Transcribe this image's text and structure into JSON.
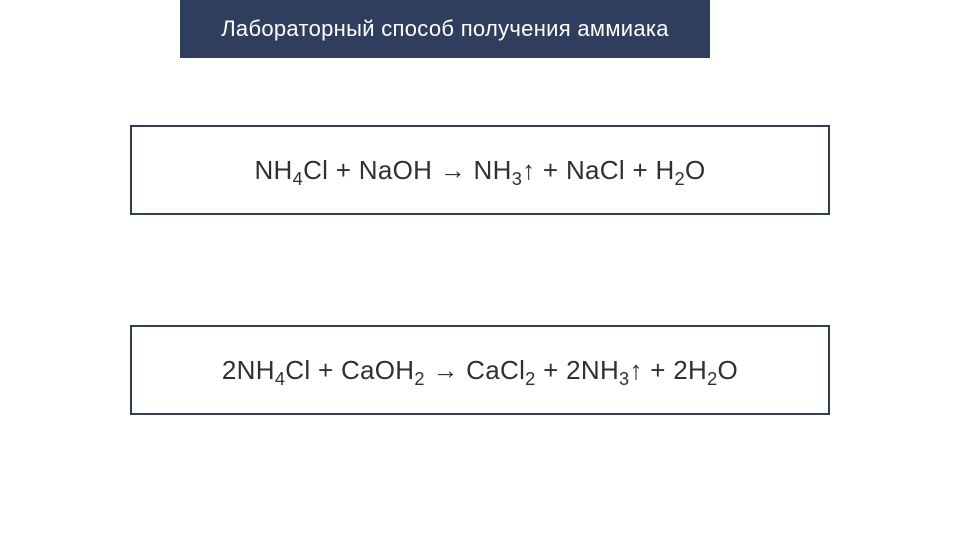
{
  "slide": {
    "title": "Лабораторный способ получения аммиака",
    "title_bg_color": "#2f3e5e",
    "title_text_color": "#ffffff",
    "title_fontsize": 22,
    "background_color": "#ffffff",
    "box_border_color": "#2f3e5e",
    "box_border_width": 2,
    "equation_fontsize": 26,
    "equation_text_color": "#303030",
    "equations": [
      {
        "tokens": [
          {
            "t": "NH"
          },
          {
            "t": "4",
            "sub": true
          },
          {
            "t": "Cl + NaOH → NH"
          },
          {
            "t": "3",
            "sub": true
          },
          {
            "t": "↑ + NaCl + H"
          },
          {
            "t": "2",
            "sub": true
          },
          {
            "t": "O"
          }
        ]
      },
      {
        "tokens": [
          {
            "t": "2NH"
          },
          {
            "t": "4",
            "sub": true
          },
          {
            "t": "Cl + CaOH"
          },
          {
            "t": "2",
            "sub": true
          },
          {
            "t": " → CaCl"
          },
          {
            "t": "2",
            "sub": true
          },
          {
            "t": " + 2NH"
          },
          {
            "t": "3",
            "sub": true
          },
          {
            "t": "↑ + 2H"
          },
          {
            "t": "2",
            "sub": true
          },
          {
            "t": "O"
          }
        ]
      }
    ]
  }
}
